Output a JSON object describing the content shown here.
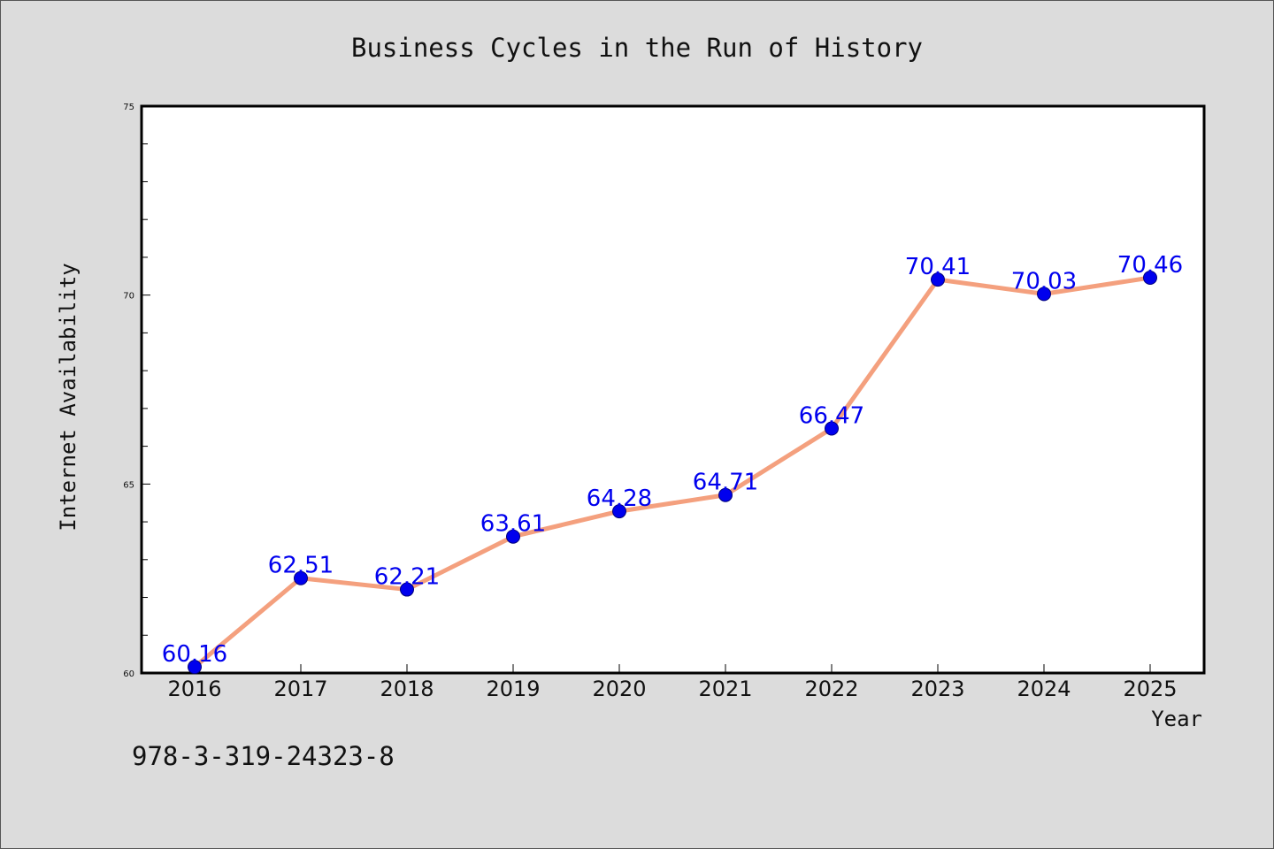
{
  "chart_data": {
    "type": "line",
    "title": "Business Cycles in the Run of History",
    "xlabel": "Year",
    "ylabel": "Internet Availability",
    "categories": [
      "2016",
      "2017",
      "2018",
      "2019",
      "2020",
      "2021",
      "2022",
      "2023",
      "2024",
      "2025"
    ],
    "values": [
      60.16,
      62.51,
      62.21,
      63.61,
      64.28,
      64.71,
      66.47,
      70.41,
      70.03,
      70.46
    ],
    "data_labels": [
      "60.16",
      "62.51",
      "62.21",
      "63.61",
      "64.28",
      "64.71",
      "66.47",
      "70.41",
      "70.03",
      "70.46"
    ],
    "ylim": [
      60,
      75
    ],
    "yticks": [
      60,
      65,
      70,
      75
    ],
    "ytick_labels": [
      "60",
      "65",
      "70",
      "75"
    ],
    "grid": false,
    "legend": "none",
    "line_color": "#f4a07e",
    "marker_color": "#0000ee",
    "label_color": "#0000ee"
  },
  "footnote": "978-3-319-24323-8"
}
